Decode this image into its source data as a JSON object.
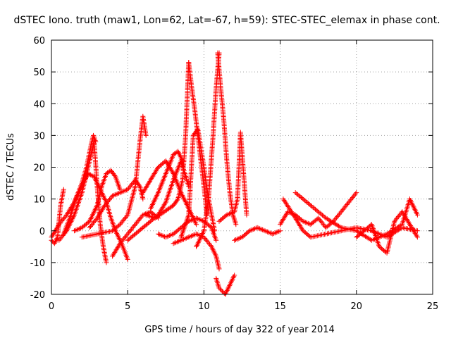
{
  "chart_data": {
    "type": "scatter",
    "title": "dSTEC Iono. truth (maw1, Lon=62, Lat=-67, h=59): STEC-STEC_elemax in phase cont.",
    "xlabel": "GPS time / hours of day 322 of year 2014",
    "ylabel": "dSTEC  / TECUs",
    "xlim": [
      0,
      25
    ],
    "ylim": [
      -20,
      60
    ],
    "xticks": [
      0,
      5,
      10,
      15,
      20,
      25
    ],
    "yticks": [
      -20,
      -10,
      0,
      10,
      20,
      30,
      40,
      50,
      60
    ],
    "grid": true,
    "marker": "plus",
    "marker_color": "#ff0000",
    "series": [
      {
        "x": [
          0.0,
          0.2,
          0.4,
          0.6,
          0.8
        ],
        "y": [
          -3,
          -4,
          -2,
          8,
          13
        ]
      },
      {
        "x": [
          0.0,
          0.5,
          1.0,
          1.5,
          2.0,
          2.3,
          2.6,
          2.75,
          2.9
        ],
        "y": [
          -2,
          2,
          5,
          9,
          15,
          20,
          27,
          30,
          28
        ]
      },
      {
        "x": [
          0.5,
          1.0,
          1.5,
          2.0,
          2.5,
          2.8,
          3.0,
          3.2,
          3.4,
          3.6
        ],
        "y": [
          -3,
          0,
          5,
          12,
          22,
          28,
          14,
          2,
          -5,
          -10
        ]
      },
      {
        "x": [
          0.8,
          1.2,
          1.6,
          2.0,
          2.4,
          2.8,
          3.2,
          3.6,
          3.9,
          4.2,
          4.6,
          5.0
        ],
        "y": [
          -1,
          4,
          10,
          14,
          18,
          17,
          13,
          9,
          4,
          0,
          -4,
          -9
        ]
      },
      {
        "x": [
          1.5,
          2.0,
          2.5,
          3.0,
          3.3,
          3.6,
          3.9,
          4.2,
          4.5
        ],
        "y": [
          0,
          1,
          3,
          8,
          14,
          18,
          19,
          17,
          13
        ]
      },
      {
        "x": [
          2.5,
          3.0,
          3.5,
          4.0,
          4.5,
          5.0,
          5.5,
          5.8,
          6.0
        ],
        "y": [
          1,
          4,
          8,
          11,
          12,
          13,
          16,
          14,
          10
        ]
      },
      {
        "x": [
          2.0,
          3.0,
          4.0,
          4.5,
          5.0,
          5.5,
          5.8,
          6.0,
          6.2
        ],
        "y": [
          -2,
          -1,
          0,
          2,
          5,
          14,
          28,
          36,
          30
        ]
      },
      {
        "x": [
          4.0,
          4.5,
          5.0,
          5.5,
          6.0,
          6.5,
          7.0
        ],
        "y": [
          -8,
          -4,
          -1,
          2,
          5,
          6,
          4
        ]
      },
      {
        "x": [
          6.5,
          7.0,
          7.5,
          8.0,
          8.3,
          8.6
        ],
        "y": [
          7,
          12,
          18,
          24,
          25,
          22
        ]
      },
      {
        "x": [
          6.0,
          6.5,
          7.0,
          7.5,
          8.0,
          8.5,
          9.0,
          9.5
        ],
        "y": [
          12,
          16,
          20,
          22,
          18,
          12,
          7,
          2
        ]
      },
      {
        "x": [
          5.0,
          5.5,
          6.0,
          6.5,
          7.0,
          7.5,
          8.0,
          8.5,
          9.0
        ],
        "y": [
          -3,
          -1,
          1,
          3,
          5,
          9,
          16,
          22,
          14
        ]
      },
      {
        "x": [
          6.2,
          6.8,
          7.4,
          8.0,
          8.3,
          8.6,
          8.8,
          9.0
        ],
        "y": [
          5,
          4,
          6,
          8,
          10,
          16,
          30,
          53
        ]
      },
      {
        "x": [
          9.0,
          9.2,
          9.4,
          9.6,
          9.8,
          10.0,
          10.2
        ],
        "y": [
          53,
          45,
          38,
          30,
          22,
          14,
          5
        ]
      },
      {
        "x": [
          8.5,
          9.0,
          9.3,
          9.6,
          10.0,
          10.3,
          10.5,
          10.7
        ],
        "y": [
          -2,
          5,
          30,
          32,
          20,
          10,
          5,
          0
        ]
      },
      {
        "x": [
          7.0,
          7.5,
          8.0,
          8.5,
          9.0,
          9.5,
          10.0,
          10.5,
          10.8
        ],
        "y": [
          -1,
          -2,
          -1,
          1,
          3,
          4,
          3,
          1,
          -3
        ]
      },
      {
        "x": [
          8.0,
          8.5,
          9.0,
          9.5,
          10.0,
          10.5,
          10.8,
          11.0
        ],
        "y": [
          -4,
          -3,
          -2,
          -1,
          -2,
          -5,
          -8,
          -12
        ]
      },
      {
        "x": [
          9.5,
          10.0,
          10.3,
          10.6,
          10.8,
          11.0
        ],
        "y": [
          -5,
          0,
          10,
          30,
          45,
          56
        ]
      },
      {
        "x": [
          10.8,
          11.0,
          11.2,
          11.4,
          11.6,
          11.8,
          12.0
        ],
        "y": [
          -15,
          -18,
          -19,
          -20,
          -18,
          -16,
          -14
        ]
      },
      {
        "x": [
          10.9,
          11.1,
          11.3,
          11.5,
          11.7,
          11.9,
          12.1
        ],
        "y": [
          56,
          45,
          35,
          22,
          12,
          5,
          2
        ]
      },
      {
        "x": [
          11.0,
          11.5,
          12.0,
          12.2,
          12.4,
          12.6,
          12.8
        ],
        "y": [
          3,
          5,
          6,
          10,
          31,
          18,
          5
        ]
      },
      {
        "x": [
          12.0,
          12.5,
          13.0,
          13.5,
          14.0,
          14.5,
          15.0
        ],
        "y": [
          -3,
          -2,
          0,
          1,
          0,
          -1,
          0
        ]
      },
      {
        "x": [
          15.0,
          15.5,
          16.0,
          16.5,
          17.0,
          17.5,
          18.0,
          18.5,
          19.0,
          19.5,
          20.0
        ],
        "y": [
          2,
          6,
          5,
          3,
          2,
          4,
          1,
          3,
          6,
          9,
          12
        ]
      },
      {
        "x": [
          15.2,
          16.0,
          16.5,
          17.0,
          18.0,
          19.0,
          20.0,
          21.0,
          22.0,
          23.0,
          24.0
        ],
        "y": [
          10,
          4,
          0,
          -2,
          -1,
          0,
          1,
          0,
          -2,
          1,
          0
        ]
      },
      {
        "x": [
          16.0,
          17.0,
          18.0,
          19.0,
          20.0,
          21.0,
          22.0,
          23.0,
          23.5,
          24.0
        ],
        "y": [
          12,
          8,
          4,
          1,
          0,
          -3,
          -1,
          2,
          10,
          5
        ]
      },
      {
        "x": [
          20.0,
          20.5,
          21.0,
          21.5,
          22.0,
          22.5,
          23.0,
          23.5,
          24.0
        ],
        "y": [
          -2,
          0,
          2,
          -5,
          -7,
          3,
          6,
          2,
          -2
        ]
      }
    ]
  }
}
